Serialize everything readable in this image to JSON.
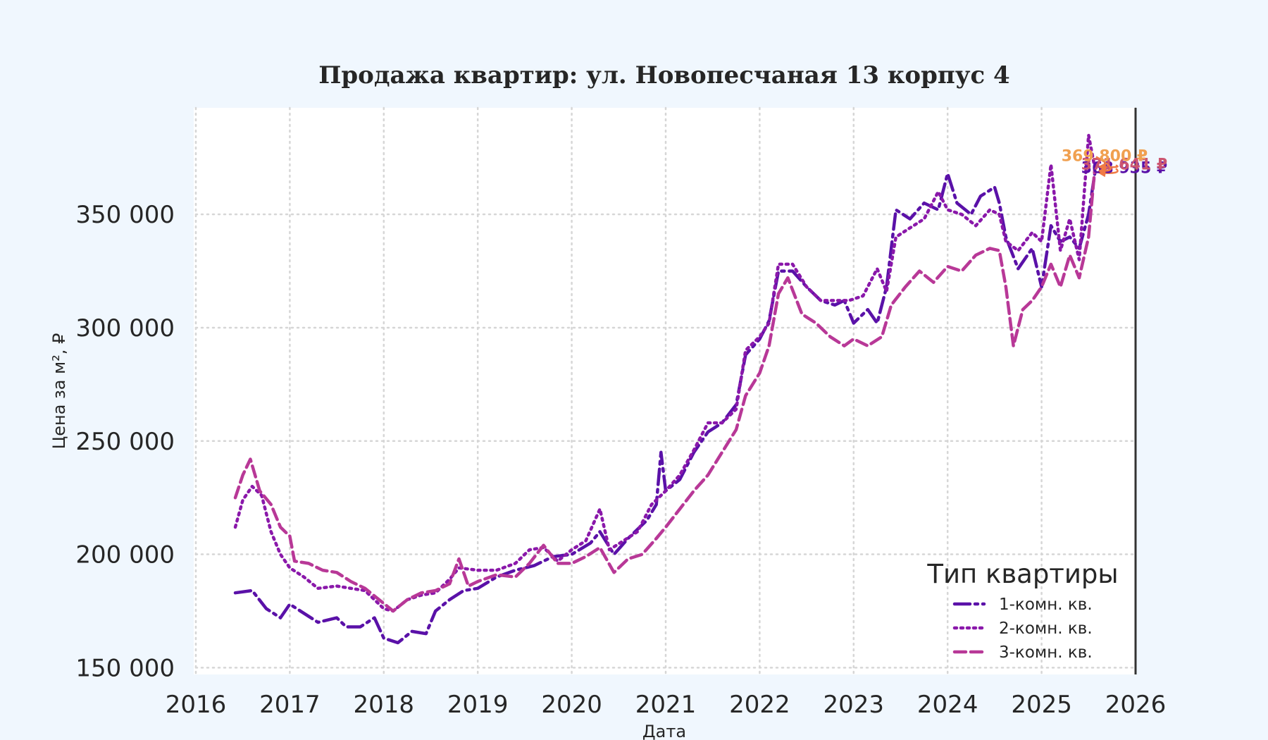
{
  "chart_data": {
    "type": "line",
    "title": "Продажа квартир: ул. Новопесчаная 13 корпус 4",
    "xlabel": "Дата",
    "ylabel": "Цена за м², ₽",
    "xlim": [
      2016.0,
      2026.0
    ],
    "ylim": [
      147000,
      397000
    ],
    "x_ticks": [
      "2016",
      "2017",
      "2018",
      "2019",
      "2020",
      "2021",
      "2022",
      "2023",
      "2024",
      "2025",
      "2026"
    ],
    "y_ticks": [
      {
        "value": 150000,
        "label": "150 000"
      },
      {
        "value": 200000,
        "label": "200 000"
      },
      {
        "value": 250000,
        "label": "250 000"
      },
      {
        "value": 300000,
        "label": "300 000"
      },
      {
        "value": 350000,
        "label": "350 000"
      }
    ],
    "grid": true,
    "legend": {
      "title": "Тип квартиры",
      "position": "bottom-right"
    },
    "series": [
      {
        "name": "1-комн. кв.",
        "color": "#5a11a8",
        "dash": "dashdot-long",
        "end_label": "368 935 ₽",
        "points": [
          [
            2016.42,
            183000
          ],
          [
            2016.6,
            184000
          ],
          [
            2016.75,
            176000
          ],
          [
            2016.9,
            172000
          ],
          [
            2017.0,
            178000
          ],
          [
            2017.15,
            174000
          ],
          [
            2017.3,
            170000
          ],
          [
            2017.5,
            172000
          ],
          [
            2017.6,
            168000
          ],
          [
            2017.75,
            168000
          ],
          [
            2017.9,
            172000
          ],
          [
            2018.0,
            163000
          ],
          [
            2018.15,
            161000
          ],
          [
            2018.3,
            166000
          ],
          [
            2018.45,
            165000
          ],
          [
            2018.55,
            175000
          ],
          [
            2018.7,
            180000
          ],
          [
            2018.85,
            184000
          ],
          [
            2019.0,
            185000
          ],
          [
            2019.2,
            190000
          ],
          [
            2019.4,
            193000
          ],
          [
            2019.6,
            195000
          ],
          [
            2019.8,
            199000
          ],
          [
            2020.0,
            200000
          ],
          [
            2020.2,
            205000
          ],
          [
            2020.3,
            210000
          ],
          [
            2020.45,
            200000
          ],
          [
            2020.6,
            207000
          ],
          [
            2020.8,
            215000
          ],
          [
            2020.9,
            222000
          ],
          [
            2020.95,
            245000
          ],
          [
            2021.0,
            228000
          ],
          [
            2021.15,
            233000
          ],
          [
            2021.3,
            245000
          ],
          [
            2021.45,
            254000
          ],
          [
            2021.6,
            258000
          ],
          [
            2021.75,
            266000
          ],
          [
            2021.85,
            288000
          ],
          [
            2022.0,
            295000
          ],
          [
            2022.1,
            303000
          ],
          [
            2022.2,
            325000
          ],
          [
            2022.35,
            325000
          ],
          [
            2022.5,
            318000
          ],
          [
            2022.65,
            312000
          ],
          [
            2022.8,
            310000
          ],
          [
            2022.9,
            312000
          ],
          [
            2023.0,
            302000
          ],
          [
            2023.15,
            308000
          ],
          [
            2023.25,
            302000
          ],
          [
            2023.35,
            318000
          ],
          [
            2023.45,
            352000
          ],
          [
            2023.6,
            348000
          ],
          [
            2023.75,
            355000
          ],
          [
            2023.9,
            352000
          ],
          [
            2024.0,
            368000
          ],
          [
            2024.1,
            355000
          ],
          [
            2024.25,
            350000
          ],
          [
            2024.35,
            358000
          ],
          [
            2024.5,
            362000
          ],
          [
            2024.55,
            355000
          ],
          [
            2024.62,
            340000
          ],
          [
            2024.75,
            326000
          ],
          [
            2024.9,
            335000
          ],
          [
            2025.0,
            318000
          ],
          [
            2025.1,
            345000
          ],
          [
            2025.2,
            338000
          ],
          [
            2025.3,
            340000
          ],
          [
            2025.4,
            335000
          ],
          [
            2025.5,
            350000
          ],
          [
            2025.57,
            368935
          ]
        ]
      },
      {
        "name": "2-комн. кв.",
        "color": "#8a18aa",
        "dash": "dotted",
        "end_label": "369 800 ₽",
        "points": [
          [
            2016.42,
            212000
          ],
          [
            2016.5,
            224000
          ],
          [
            2016.6,
            230000
          ],
          [
            2016.7,
            226000
          ],
          [
            2016.8,
            210000
          ],
          [
            2016.9,
            200000
          ],
          [
            2017.0,
            194000
          ],
          [
            2017.15,
            190000
          ],
          [
            2017.3,
            185000
          ],
          [
            2017.5,
            186000
          ],
          [
            2017.65,
            185000
          ],
          [
            2017.8,
            184000
          ],
          [
            2017.9,
            180000
          ],
          [
            2018.0,
            176000
          ],
          [
            2018.1,
            175000
          ],
          [
            2018.25,
            180000
          ],
          [
            2018.4,
            182000
          ],
          [
            2018.55,
            183000
          ],
          [
            2018.7,
            189000
          ],
          [
            2018.8,
            194000
          ],
          [
            2019.0,
            193000
          ],
          [
            2019.2,
            193000
          ],
          [
            2019.4,
            196000
          ],
          [
            2019.55,
            202000
          ],
          [
            2019.7,
            203000
          ],
          [
            2019.85,
            197000
          ],
          [
            2020.0,
            202000
          ],
          [
            2020.15,
            206000
          ],
          [
            2020.3,
            220000
          ],
          [
            2020.4,
            202000
          ],
          [
            2020.55,
            206000
          ],
          [
            2020.7,
            210000
          ],
          [
            2020.85,
            222000
          ],
          [
            2021.0,
            228000
          ],
          [
            2021.15,
            235000
          ],
          [
            2021.3,
            246000
          ],
          [
            2021.45,
            258000
          ],
          [
            2021.6,
            258000
          ],
          [
            2021.75,
            264000
          ],
          [
            2021.85,
            290000
          ],
          [
            2022.0,
            296000
          ],
          [
            2022.1,
            302000
          ],
          [
            2022.2,
            328000
          ],
          [
            2022.35,
            328000
          ],
          [
            2022.5,
            318000
          ],
          [
            2022.65,
            312000
          ],
          [
            2022.8,
            312000
          ],
          [
            2022.95,
            312000
          ],
          [
            2023.1,
            314000
          ],
          [
            2023.25,
            326000
          ],
          [
            2023.35,
            316000
          ],
          [
            2023.45,
            340000
          ],
          [
            2023.6,
            344000
          ],
          [
            2023.75,
            348000
          ],
          [
            2023.9,
            360000
          ],
          [
            2024.0,
            352000
          ],
          [
            2024.15,
            350000
          ],
          [
            2024.3,
            345000
          ],
          [
            2024.45,
            352000
          ],
          [
            2024.55,
            350000
          ],
          [
            2024.62,
            338000
          ],
          [
            2024.75,
            334000
          ],
          [
            2024.9,
            342000
          ],
          [
            2025.0,
            338000
          ],
          [
            2025.1,
            372000
          ],
          [
            2025.2,
            334000
          ],
          [
            2025.3,
            348000
          ],
          [
            2025.4,
            330000
          ],
          [
            2025.5,
            385000
          ],
          [
            2025.57,
            369800
          ]
        ]
      },
      {
        "name": "3-комн. кв.",
        "color": "#b83897",
        "dash": "dashed",
        "end_label": "371 641 ₽",
        "points": [
          [
            2016.42,
            225000
          ],
          [
            2016.5,
            235000
          ],
          [
            2016.58,
            242000
          ],
          [
            2016.68,
            228000
          ],
          [
            2016.8,
            222000
          ],
          [
            2016.9,
            212000
          ],
          [
            2017.0,
            208000
          ],
          [
            2017.05,
            197000
          ],
          [
            2017.2,
            196000
          ],
          [
            2017.35,
            193000
          ],
          [
            2017.5,
            192000
          ],
          [
            2017.65,
            188000
          ],
          [
            2017.8,
            185000
          ],
          [
            2017.95,
            180000
          ],
          [
            2018.1,
            175000
          ],
          [
            2018.25,
            180000
          ],
          [
            2018.4,
            183000
          ],
          [
            2018.55,
            184000
          ],
          [
            2018.7,
            187000
          ],
          [
            2018.8,
            198000
          ],
          [
            2018.9,
            186000
          ],
          [
            2019.0,
            188000
          ],
          [
            2019.2,
            191000
          ],
          [
            2019.4,
            190000
          ],
          [
            2019.55,
            196000
          ],
          [
            2019.7,
            204000
          ],
          [
            2019.85,
            196000
          ],
          [
            2020.0,
            196000
          ],
          [
            2020.15,
            199000
          ],
          [
            2020.3,
            203000
          ],
          [
            2020.45,
            192000
          ],
          [
            2020.6,
            198000
          ],
          [
            2020.75,
            200000
          ],
          [
            2020.9,
            207000
          ],
          [
            2021.0,
            212000
          ],
          [
            2021.15,
            220000
          ],
          [
            2021.3,
            228000
          ],
          [
            2021.45,
            235000
          ],
          [
            2021.6,
            245000
          ],
          [
            2021.75,
            255000
          ],
          [
            2021.85,
            270000
          ],
          [
            2022.0,
            280000
          ],
          [
            2022.1,
            292000
          ],
          [
            2022.2,
            315000
          ],
          [
            2022.3,
            322000
          ],
          [
            2022.45,
            306000
          ],
          [
            2022.6,
            302000
          ],
          [
            2022.75,
            296000
          ],
          [
            2022.9,
            292000
          ],
          [
            2023.0,
            295000
          ],
          [
            2023.15,
            292000
          ],
          [
            2023.3,
            296000
          ],
          [
            2023.4,
            310000
          ],
          [
            2023.55,
            318000
          ],
          [
            2023.7,
            325000
          ],
          [
            2023.85,
            320000
          ],
          [
            2024.0,
            327000
          ],
          [
            2024.15,
            325000
          ],
          [
            2024.3,
            332000
          ],
          [
            2024.45,
            335000
          ],
          [
            2024.55,
            334000
          ],
          [
            2024.62,
            318000
          ],
          [
            2024.7,
            292000
          ],
          [
            2024.8,
            308000
          ],
          [
            2024.9,
            312000
          ],
          [
            2025.0,
            318000
          ],
          [
            2025.1,
            328000
          ],
          [
            2025.2,
            318000
          ],
          [
            2025.3,
            332000
          ],
          [
            2025.4,
            322000
          ],
          [
            2025.5,
            340000
          ],
          [
            2025.57,
            371641
          ]
        ]
      }
    ],
    "arrow_color": "#f07a45",
    "vline_x": 2026.0
  }
}
